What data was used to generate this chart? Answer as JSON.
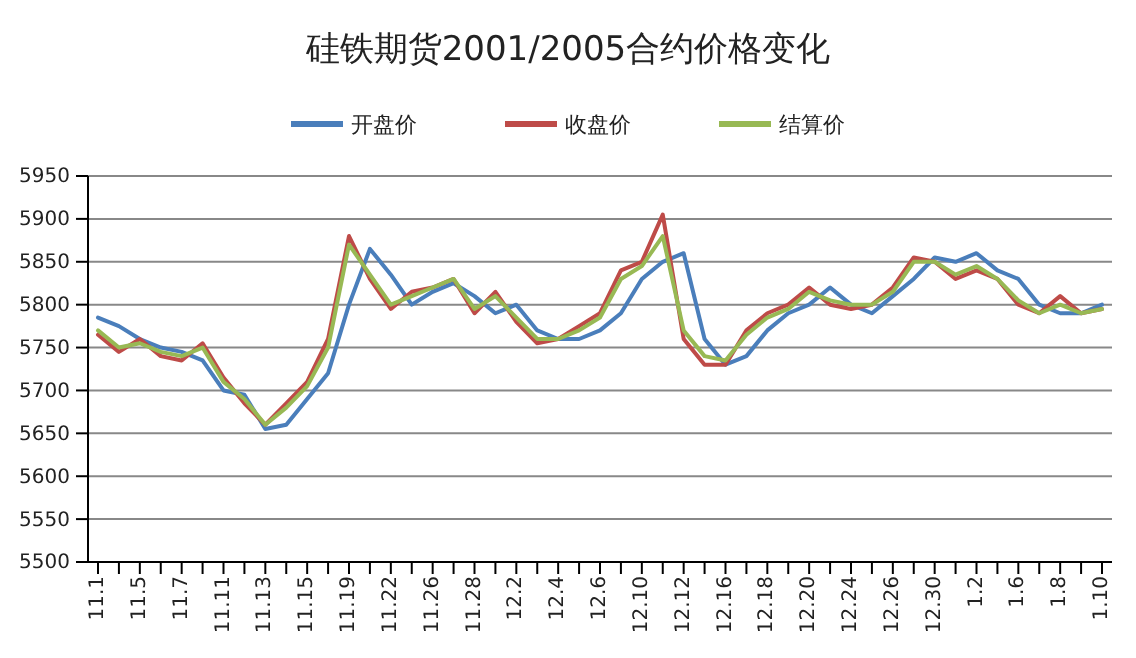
{
  "chart_data": {
    "type": "line",
    "title": "硅铁期货2001/2005合约价格变化",
    "categories": [
      "11.1",
      null,
      "11.5",
      null,
      "11.7",
      null,
      "11.11",
      null,
      "11.13",
      null,
      "11.15",
      null,
      "11.19",
      null,
      "11.22",
      null,
      "11.26",
      null,
      "11.28",
      null,
      "12.2",
      null,
      "12.4",
      null,
      "12.6",
      null,
      "12.10",
      null,
      "12.12",
      null,
      "12.16",
      null,
      "12.18",
      null,
      "12.20",
      null,
      "12.24",
      null,
      "12.26",
      null,
      "12.30",
      null,
      "1.2",
      null,
      "1.6",
      null,
      "1.8",
      null,
      "1.10"
    ],
    "series": [
      {
        "name": "开盘价",
        "color": "#4a7ebb",
        "values": [
          5785,
          5775,
          5760,
          5750,
          5745,
          5735,
          5700,
          5695,
          5655,
          5660,
          5690,
          5720,
          5800,
          5865,
          5835,
          5800,
          5815,
          5825,
          5810,
          5790,
          5800,
          5770,
          5760,
          5760,
          5770,
          5790,
          5830,
          5850,
          5860,
          5760,
          5730,
          5740,
          5770,
          5790,
          5800,
          5820,
          5800,
          5790,
          5810,
          5830,
          5855,
          5850,
          5860,
          5840,
          5830,
          5800,
          5790,
          5790,
          5800
        ]
      },
      {
        "name": "收盘价",
        "color": "#be4b48",
        "values": [
          5765,
          5745,
          5760,
          5740,
          5735,
          5755,
          5715,
          5685,
          5660,
          5685,
          5710,
          5760,
          5880,
          5830,
          5795,
          5815,
          5820,
          5830,
          5790,
          5815,
          5780,
          5755,
          5760,
          5775,
          5790,
          5840,
          5850,
          5905,
          5760,
          5730,
          5730,
          5770,
          5790,
          5800,
          5820,
          5800,
          5795,
          5800,
          5820,
          5855,
          5850,
          5830,
          5840,
          5830,
          5800,
          5790,
          5810,
          5790,
          5795
        ]
      },
      {
        "name": "结算价",
        "color": "#98b954",
        "values": [
          5770,
          5750,
          5755,
          5745,
          5740,
          5750,
          5710,
          5690,
          5660,
          5680,
          5705,
          5750,
          5870,
          5835,
          5800,
          5810,
          5820,
          5830,
          5795,
          5810,
          5785,
          5760,
          5760,
          5770,
          5785,
          5830,
          5845,
          5880,
          5770,
          5740,
          5735,
          5765,
          5785,
          5795,
          5815,
          5805,
          5800,
          5800,
          5815,
          5850,
          5850,
          5835,
          5845,
          5830,
          5805,
          5790,
          5800,
          5790,
          5795
        ]
      }
    ],
    "ylim": [
      5500,
      5950
    ],
    "yticks": [
      5500,
      5550,
      5600,
      5650,
      5700,
      5750,
      5800,
      5850,
      5900,
      5950
    ],
    "grid": "y",
    "legend": "top",
    "marker": "none",
    "line_style": "solid"
  }
}
